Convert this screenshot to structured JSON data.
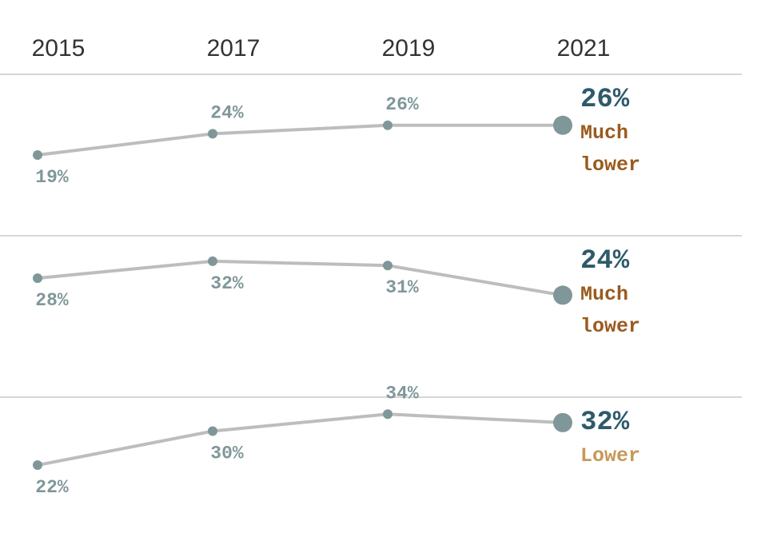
{
  "chart_data": {
    "type": "line",
    "categories": [
      "2015",
      "2017",
      "2019",
      "2021"
    ],
    "ylim": [
      0,
      38
    ],
    "color": "#bdbdbd",
    "point_color": "#7f9799",
    "series": [
      {
        "values": [
          19,
          24,
          26,
          26
        ],
        "value_labels": [
          "19%",
          "24%",
          "26%",
          "26%"
        ],
        "annotation": [
          "Much",
          "lower"
        ],
        "annotation_color": "#9a5a1e"
      },
      {
        "values": [
          28,
          32,
          31,
          24
        ],
        "value_labels": [
          "28%",
          "32%",
          "31%",
          "24%"
        ],
        "annotation": [
          "Much",
          "lower"
        ],
        "annotation_color": "#9a5a1e"
      },
      {
        "values": [
          22,
          30,
          34,
          32
        ],
        "value_labels": [
          "22%",
          "30%",
          "34%",
          "32%"
        ],
        "annotation": [
          "Lower"
        ],
        "annotation_color": "#c9975a"
      }
    ]
  }
}
